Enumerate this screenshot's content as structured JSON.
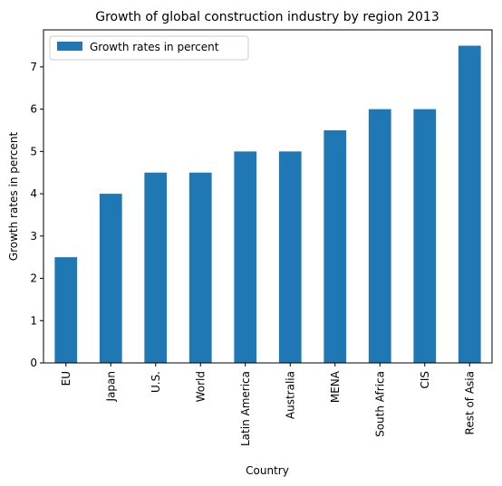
{
  "chart_data": {
    "type": "bar",
    "title": "Growth of global construction industry by region 2013",
    "xlabel": "Country",
    "ylabel": "Growth rates in percent",
    "categories": [
      "EU",
      "Japan",
      "U.S.",
      "World",
      "Latin America",
      "Australia",
      "MENA",
      "South Africa",
      "CIS",
      "Rest of Asia"
    ],
    "series": [
      {
        "name": "Growth rates in percent",
        "values": [
          2.5,
          4.0,
          4.5,
          4.5,
          5.0,
          5.0,
          5.5,
          6.0,
          6.0,
          7.5
        ],
        "color": "#1f77b4"
      }
    ],
    "yticks": [
      0,
      1,
      2,
      3,
      4,
      5,
      6,
      7
    ],
    "ylim": [
      0,
      7.875
    ],
    "grid": false,
    "legend": "top-left"
  }
}
